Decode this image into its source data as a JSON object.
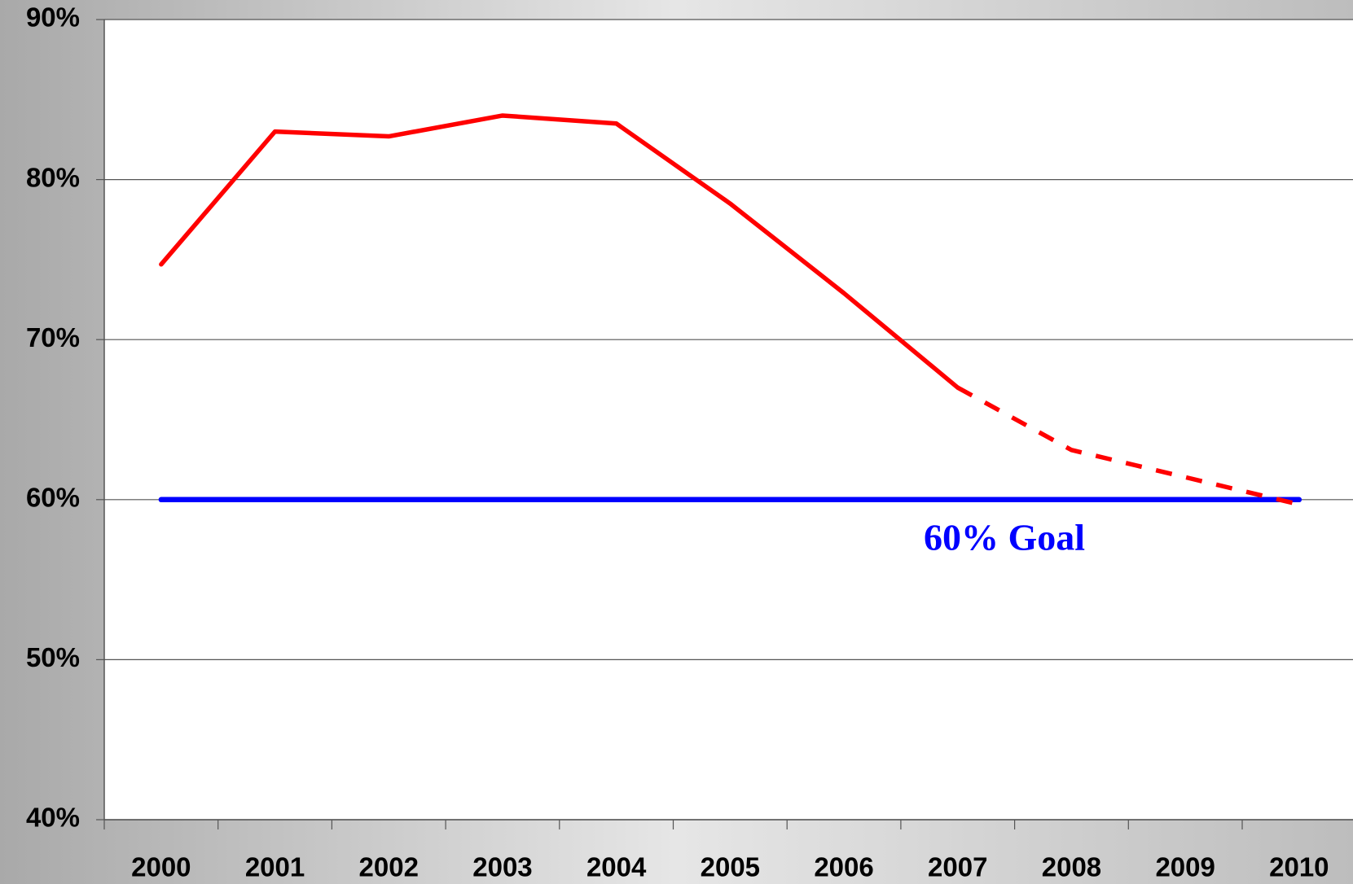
{
  "chart_data": {
    "type": "line",
    "categories": [
      "2000",
      "2001",
      "2002",
      "2003",
      "2004",
      "2005",
      "2006",
      "2007",
      "2008",
      "2009",
      "2010"
    ],
    "series": [
      {
        "color": "#ff0000",
        "style": "solid",
        "values": [
          74.7,
          83.0,
          82.7,
          84.0,
          83.5,
          78.5,
          72.9,
          67.0,
          null,
          null,
          null
        ]
      },
      {
        "color": "#ff0000",
        "style": "dashed",
        "values": [
          null,
          null,
          null,
          null,
          null,
          null,
          null,
          67.0,
          63.1,
          61.4,
          59.7
        ]
      },
      {
        "color": "#0000ff",
        "style": "solid",
        "values": [
          60,
          60,
          60,
          60,
          60,
          60,
          60,
          60,
          60,
          60,
          60
        ]
      }
    ],
    "annotations": [
      {
        "text": "60% Goal",
        "color": "#0000ff"
      }
    ],
    "ylim": [
      40,
      90
    ],
    "yticks": [
      {
        "value": 40,
        "label": "40%"
      },
      {
        "value": 50,
        "label": "50%"
      },
      {
        "value": 60,
        "label": "60%"
      },
      {
        "value": 70,
        "label": "70%"
      },
      {
        "value": 80,
        "label": "80%"
      },
      {
        "value": 90,
        "label": "90%"
      }
    ],
    "grid": true
  }
}
